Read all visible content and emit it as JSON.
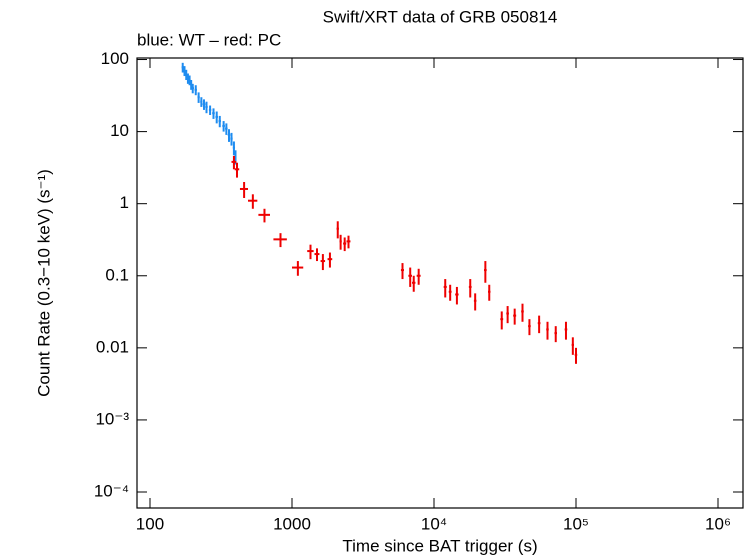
{
  "chart_data": {
    "type": "scatter",
    "title": "Swift/XRT data of GRB 050814",
    "subtitle": "blue: WT – red: PC",
    "x_label": "Time since BAT trigger (s)",
    "y_label": "Count Rate (0.3−10 keV) (s⁻¹)",
    "xscale": "log",
    "yscale": "log",
    "xlim": [
      81,
      1500000
    ],
    "ylim": [
      6e-05,
      105
    ],
    "xticks": [
      100,
      1000,
      {
        "value": 10000,
        "label": "10⁴"
      },
      {
        "value": 100000,
        "label": "10⁵"
      },
      {
        "value": 1000000,
        "label": "10⁶"
      }
    ],
    "yticks": [
      {
        "value": 0.0001,
        "label": "10⁻⁴"
      },
      {
        "value": 0.001,
        "label": "10⁻³"
      },
      0.01,
      0.1,
      1,
      10,
      100
    ],
    "series": [
      {
        "name": "WT",
        "color": "#1e8cf0",
        "x": [
          170,
          175,
          180,
          185,
          190,
          195,
          200,
          210,
          220,
          230,
          240,
          250,
          265,
          280,
          295,
          310,
          330,
          345,
          360,
          375,
          390,
          400
        ],
        "values": [
          78,
          70,
          62,
          55,
          52,
          45,
          40,
          38,
          30,
          26,
          24,
          22,
          20,
          18,
          16,
          14,
          12,
          11,
          9,
          8,
          6,
          4.5
        ],
        "xerr": [
          3,
          3,
          3,
          3,
          3,
          3,
          4,
          4,
          4,
          4,
          5,
          5,
          5,
          6,
          6,
          6,
          7,
          7,
          7,
          7,
          7,
          6
        ],
        "yerr": [
          12,
          11,
          10,
          9,
          8,
          7,
          6,
          6,
          5,
          4,
          4,
          4,
          3,
          3,
          3,
          2.5,
          2,
          2,
          1.8,
          1.6,
          1.3,
          1
        ]
      },
      {
        "name": "PC",
        "color": "#ee0000",
        "x": [
          390,
          410,
          460,
          530,
          640,
          830,
          1100,
          1350,
          1500,
          1650,
          1850,
          2100,
          2200,
          2350,
          2500,
          6000,
          6800,
          7200,
          7800,
          12000,
          13000,
          14500,
          18000,
          19500,
          23000,
          24500,
          30000,
          33000,
          37000,
          42000,
          47000,
          55000,
          63000,
          72000,
          85000,
          95000,
          100000
        ],
        "values": [
          3.8,
          3.0,
          1.6,
          1.1,
          0.7,
          0.32,
          0.13,
          0.22,
          0.2,
          0.16,
          0.17,
          0.45,
          0.3,
          0.28,
          0.3,
          0.12,
          0.1,
          0.08,
          0.1,
          0.07,
          0.06,
          0.055,
          0.07,
          0.045,
          0.12,
          0.06,
          0.025,
          0.03,
          0.028,
          0.032,
          0.02,
          0.022,
          0.018,
          0.016,
          0.018,
          0.011,
          0.008
        ],
        "xerr": [
          15,
          15,
          30,
          40,
          60,
          90,
          100,
          70,
          60,
          60,
          70,
          40,
          40,
          60,
          80,
          150,
          200,
          200,
          250,
          300,
          300,
          400,
          400,
          400,
          500,
          500,
          700,
          700,
          900,
          900,
          1000,
          1200,
          1300,
          1500,
          1800,
          1800,
          2000
        ],
        "yerr": [
          0.8,
          0.7,
          0.4,
          0.25,
          0.15,
          0.07,
          0.03,
          0.05,
          0.04,
          0.04,
          0.04,
          0.12,
          0.07,
          0.06,
          0.06,
          0.03,
          0.03,
          0.02,
          0.025,
          0.02,
          0.015,
          0.015,
          0.02,
          0.012,
          0.04,
          0.015,
          0.007,
          0.008,
          0.007,
          0.009,
          0.005,
          0.006,
          0.005,
          0.004,
          0.005,
          0.003,
          0.002
        ]
      }
    ]
  }
}
